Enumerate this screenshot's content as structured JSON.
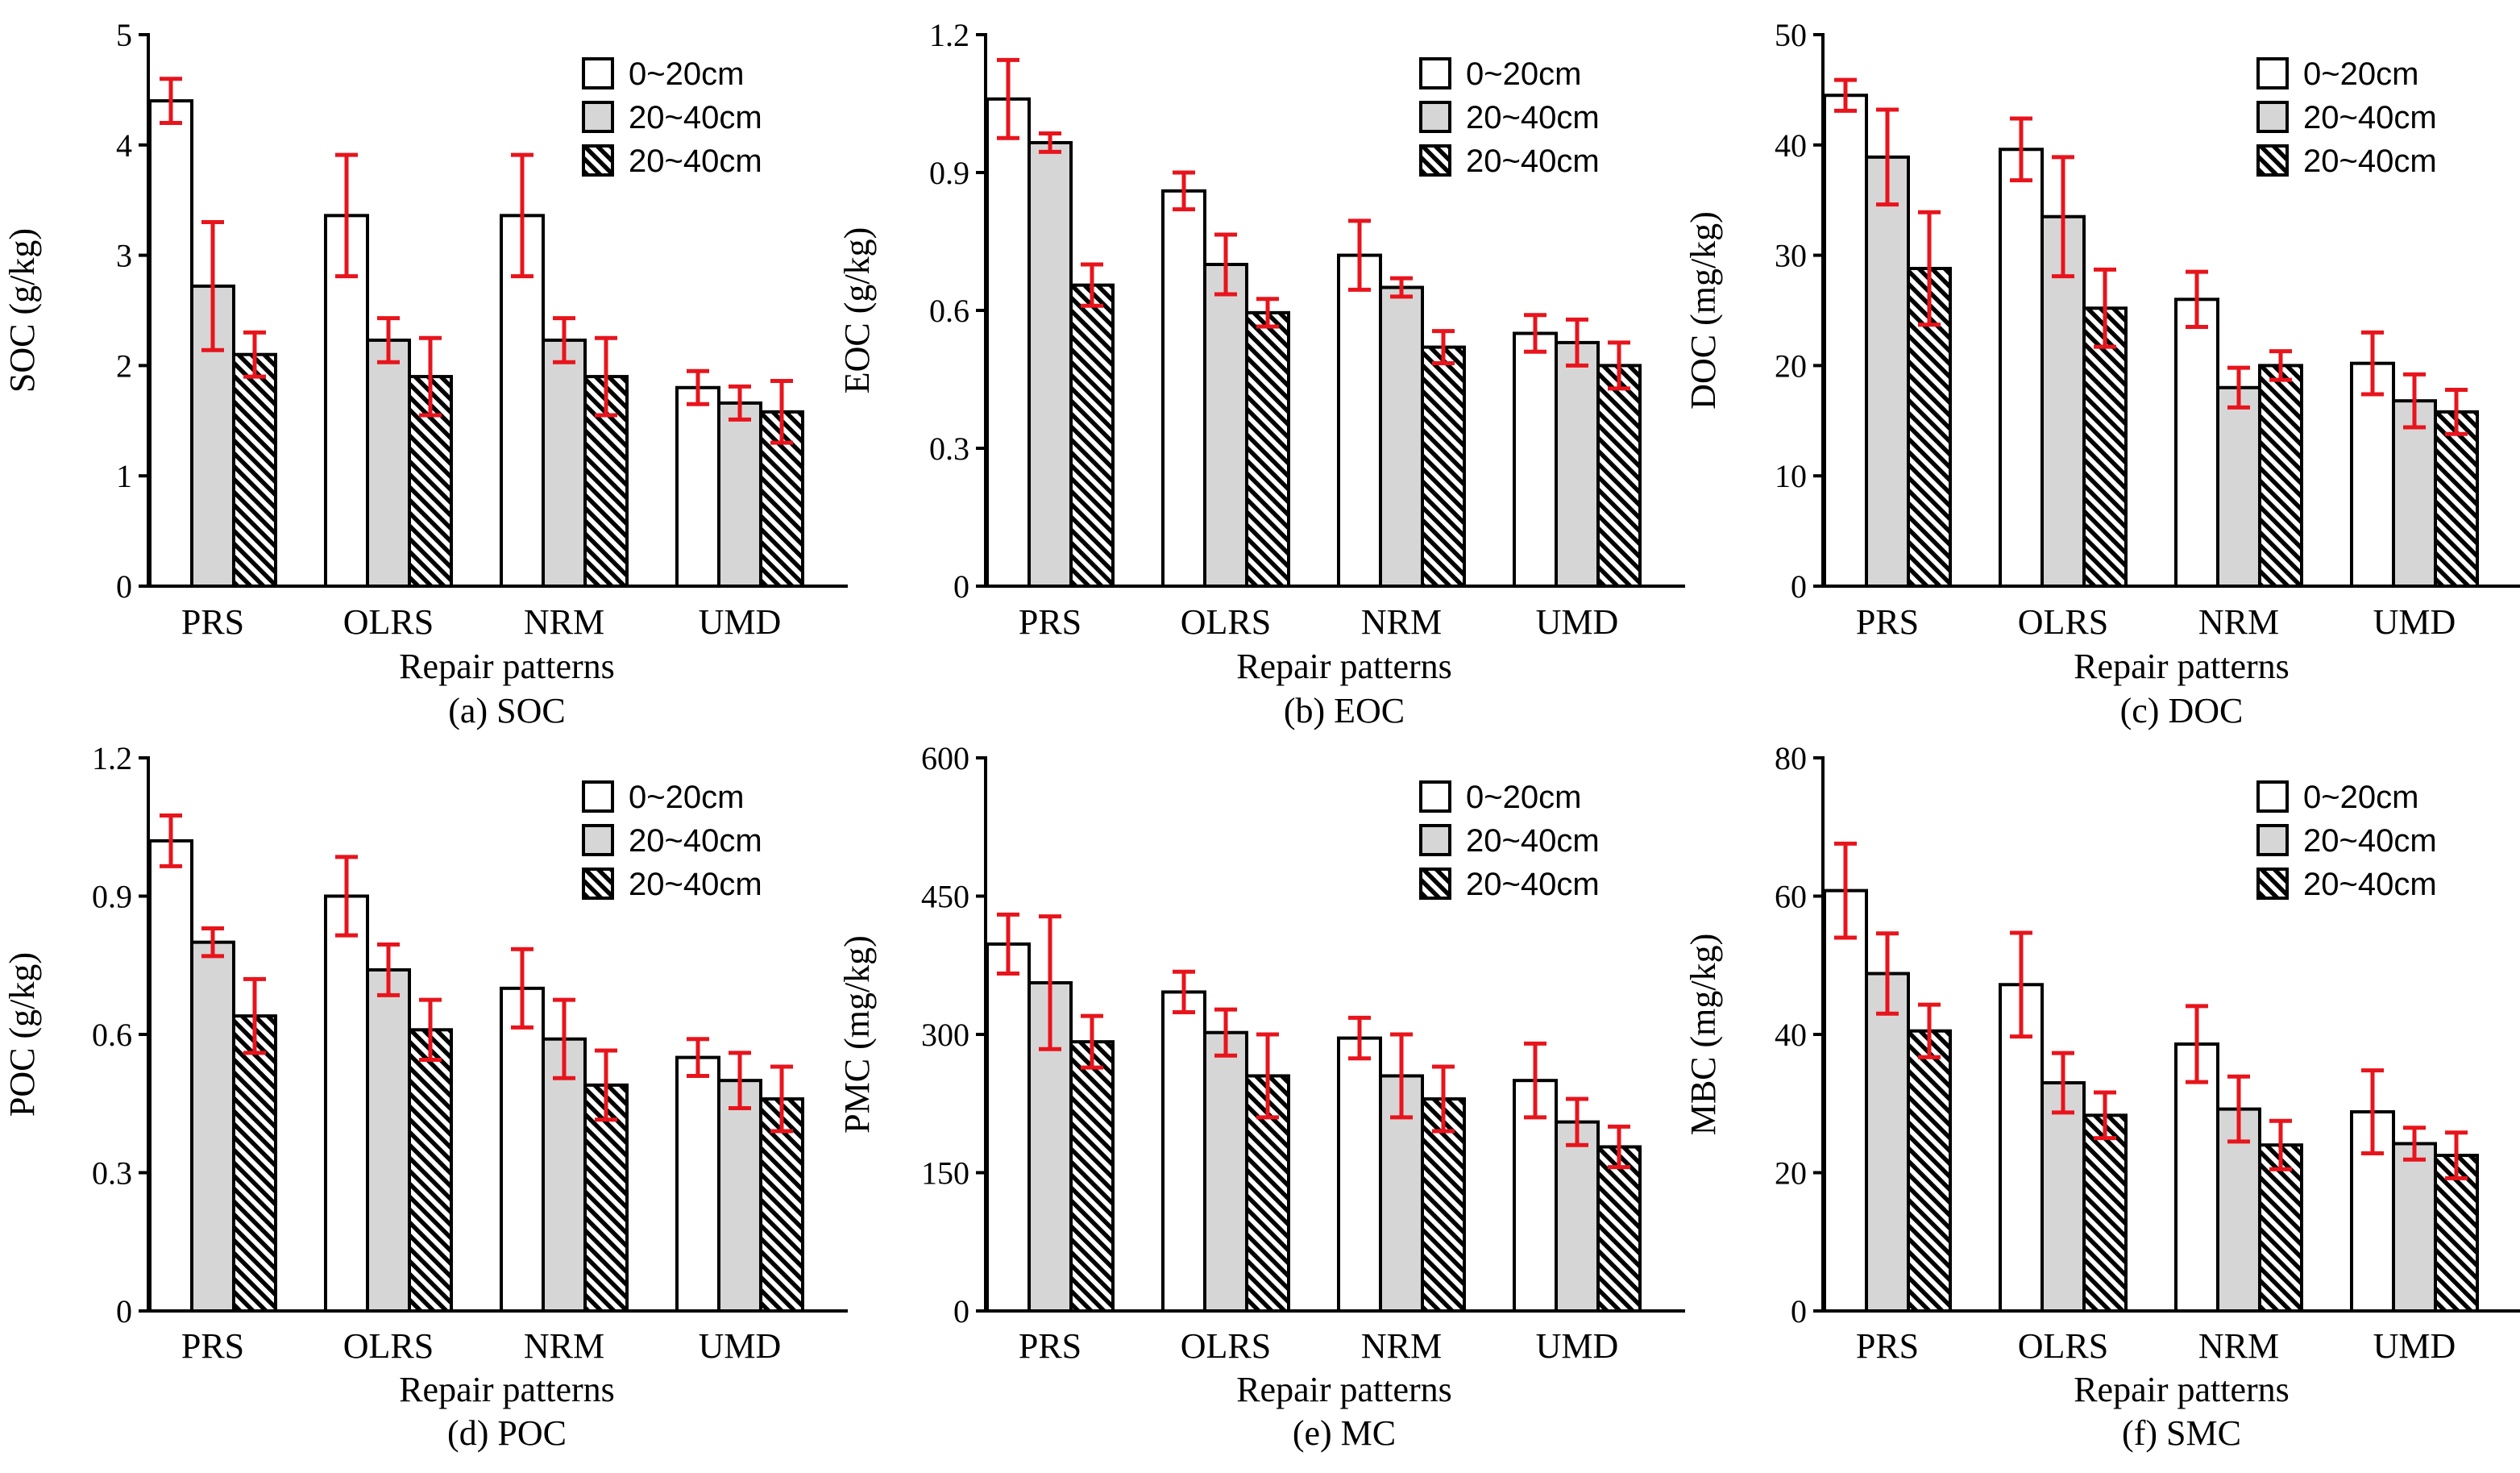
{
  "figure_colors": {
    "error_bar": "#e8141c",
    "axis": "#000000",
    "shade": "#d6d6d6",
    "white": "#ffffff"
  },
  "legend_entries": [
    "0~20cm",
    "20~40cm",
    "20~40cm"
  ],
  "chart_data": [
    {
      "type": "bar",
      "panel": "a",
      "caption": "(a) SOC",
      "xlabel": "Repair patterns",
      "ylabel": "SOC (g/kg)",
      "categories": [
        "PRS",
        "OLRS",
        "NRM",
        "UMD"
      ],
      "ylim": [
        0,
        5
      ],
      "yticks": [
        0,
        1,
        2,
        3,
        4,
        5
      ],
      "ytick_labels": [
        "0",
        "1",
        "2",
        "3",
        "4",
        "5"
      ],
      "series": [
        {
          "name": "0~20cm",
          "values": [
            4.4,
            3.36,
            3.36,
            1.8
          ],
          "errors": [
            0.2,
            0.55,
            0.55,
            0.15
          ]
        },
        {
          "name": "20~40cm",
          "values": [
            2.72,
            2.23,
            2.23,
            1.66
          ],
          "errors": [
            0.58,
            0.2,
            0.2,
            0.15
          ]
        },
        {
          "name": "20~40cm",
          "values": [
            2.1,
            1.9,
            1.9,
            1.58
          ],
          "errors": [
            0.2,
            0.35,
            0.35,
            0.28
          ]
        }
      ]
    },
    {
      "type": "bar",
      "panel": "b",
      "caption": "(b) EOC",
      "xlabel": "Repair patterns",
      "ylabel": "EOC (g/kg)",
      "categories": [
        "PRS",
        "OLRS",
        "NRM",
        "UMD"
      ],
      "ylim": [
        0,
        1.2
      ],
      "yticks": [
        0,
        0.3,
        0.6,
        0.9,
        1.2
      ],
      "ytick_labels": [
        "0",
        "0.3",
        "0.6",
        "0.9",
        "1.2"
      ],
      "series": [
        {
          "name": "0~20cm",
          "values": [
            1.06,
            0.86,
            0.72,
            0.55
          ],
          "errors": [
            0.085,
            0.04,
            0.075,
            0.04
          ]
        },
        {
          "name": "20~40cm",
          "values": [
            0.965,
            0.7,
            0.65,
            0.53
          ],
          "errors": [
            0.02,
            0.065,
            0.02,
            0.05
          ]
        },
        {
          "name": "20~40cm",
          "values": [
            0.655,
            0.595,
            0.52,
            0.48
          ],
          "errors": [
            0.045,
            0.03,
            0.035,
            0.05
          ]
        }
      ]
    },
    {
      "type": "bar",
      "panel": "c",
      "caption": "(c) DOC",
      "xlabel": "Repair patterns",
      "ylabel": "DOC (mg/kg)",
      "categories": [
        "PRS",
        "OLRS",
        "NRM",
        "UMD"
      ],
      "ylim": [
        0,
        50
      ],
      "yticks": [
        0,
        10,
        20,
        30,
        40,
        50
      ],
      "ytick_labels": [
        "0",
        "10",
        "20",
        "30",
        "40",
        "50"
      ],
      "series": [
        {
          "name": "0~20cm",
          "values": [
            44.5,
            39.6,
            26.0,
            20.2
          ],
          "errors": [
            1.4,
            2.8,
            2.5,
            2.8
          ]
        },
        {
          "name": "20~40cm",
          "values": [
            38.9,
            33.5,
            18.0,
            16.8
          ],
          "errors": [
            4.3,
            5.4,
            1.8,
            2.4
          ]
        },
        {
          "name": "20~40cm",
          "values": [
            28.8,
            25.2,
            20.0,
            15.8
          ],
          "errors": [
            5.1,
            3.5,
            1.3,
            2.0
          ]
        }
      ]
    },
    {
      "type": "bar",
      "panel": "d",
      "caption": "(d) POC",
      "xlabel": "Repair patterns",
      "ylabel": "POC (g/kg)",
      "categories": [
        "PRS",
        "OLRS",
        "NRM",
        "UMD"
      ],
      "ylim": [
        0,
        1.2
      ],
      "yticks": [
        0,
        0.3,
        0.6,
        0.9,
        1.2
      ],
      "ytick_labels": [
        "0",
        "0.3",
        "0.6",
        "0.9",
        "1.2"
      ],
      "series": [
        {
          "name": "0~20cm",
          "values": [
            1.02,
            0.9,
            0.7,
            0.55
          ],
          "errors": [
            0.055,
            0.085,
            0.085,
            0.04
          ]
        },
        {
          "name": "20~40cm",
          "values": [
            0.8,
            0.74,
            0.59,
            0.5
          ],
          "errors": [
            0.03,
            0.055,
            0.085,
            0.06
          ]
        },
        {
          "name": "20~40cm",
          "values": [
            0.64,
            0.61,
            0.49,
            0.46
          ],
          "errors": [
            0.08,
            0.065,
            0.075,
            0.07
          ]
        }
      ]
    },
    {
      "type": "bar",
      "panel": "e",
      "caption": "(e) MC",
      "xlabel": "Repair patterns",
      "ylabel": "PMC (mg/kg)",
      "categories": [
        "PRS",
        "OLRS",
        "NRM",
        "UMD"
      ],
      "ylim": [
        0,
        600
      ],
      "yticks": [
        0,
        150,
        300,
        450,
        600
      ],
      "ytick_labels": [
        "0",
        "150",
        "300",
        "450",
        "600"
      ],
      "series": [
        {
          "name": "0~20cm",
          "values": [
            398,
            346,
            296,
            250
          ],
          "errors": [
            32,
            22,
            22,
            40
          ]
        },
        {
          "name": "20~40cm",
          "values": [
            356,
            302,
            255,
            205
          ],
          "errors": [
            72,
            25,
            45,
            25
          ]
        },
        {
          "name": "20~40cm",
          "values": [
            292,
            255,
            230,
            178
          ],
          "errors": [
            28,
            45,
            35,
            22
          ]
        }
      ]
    },
    {
      "type": "bar",
      "panel": "f",
      "caption": "(f) SMC",
      "xlabel": "Repair patterns",
      "ylabel": "MBC (mg/kg)",
      "categories": [
        "PRS",
        "OLRS",
        "NRM",
        "UMD"
      ],
      "ylim": [
        0,
        80
      ],
      "yticks": [
        0,
        20,
        40,
        60,
        80
      ],
      "ytick_labels": [
        "0",
        "20",
        "40",
        "60",
        "80"
      ],
      "series": [
        {
          "name": "0~20cm",
          "values": [
            60.8,
            47.2,
            38.6,
            28.8
          ],
          "errors": [
            6.8,
            7.5,
            5.5,
            6.0
          ]
        },
        {
          "name": "20~40cm",
          "values": [
            48.8,
            33.0,
            29.2,
            24.2
          ],
          "errors": [
            5.8,
            4.3,
            4.7,
            2.3
          ]
        },
        {
          "name": "20~40cm",
          "values": [
            40.5,
            28.3,
            24.0,
            22.5
          ],
          "errors": [
            3.8,
            3.3,
            3.5,
            3.3
          ]
        }
      ]
    }
  ]
}
